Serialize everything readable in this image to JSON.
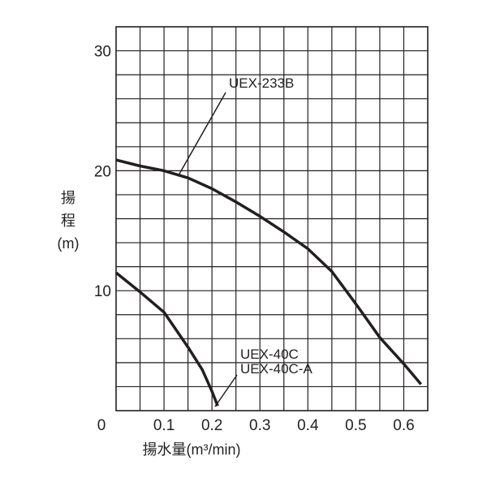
{
  "chart_data": {
    "type": "line",
    "xlabel": "揚水量(m³/min)",
    "ylabel": [
      "揚",
      "程",
      "(m)"
    ],
    "xlim": [
      0,
      0.65
    ],
    "ylim": [
      0,
      32
    ],
    "xticks": [
      0,
      0.1,
      0.2,
      0.3,
      0.4,
      0.5,
      0.6
    ],
    "yticks": [
      10,
      20,
      30
    ],
    "xgrid": [
      0.05,
      0.1,
      0.15,
      0.2,
      0.25,
      0.3,
      0.35,
      0.4,
      0.45,
      0.5,
      0.55,
      0.6
    ],
    "ygrid": [
      2,
      4,
      6,
      8,
      10,
      12,
      14,
      16,
      18,
      20,
      22,
      24,
      26,
      28,
      30
    ],
    "grid": true,
    "series": [
      {
        "name": [
          "UEX-233B"
        ],
        "color": "#231f20",
        "x": [
          0,
          0.05,
          0.1,
          0.15,
          0.2,
          0.25,
          0.3,
          0.35,
          0.4,
          0.45,
          0.5,
          0.55,
          0.6,
          0.636
        ],
        "values": [
          20.9,
          20.4,
          20.0,
          19.4,
          18.5,
          17.4,
          16.2,
          14.9,
          13.5,
          11.6,
          8.9,
          6.1,
          3.9,
          2.2
        ]
      },
      {
        "name": [
          "UEX-40C",
          "UEX-40C-A"
        ],
        "color": "#231f20",
        "x": [
          0,
          0.05,
          0.1,
          0.15,
          0.18,
          0.2,
          0.212
        ],
        "values": [
          11.5,
          9.9,
          8.2,
          5.3,
          3.4,
          1.6,
          0.4
        ]
      }
    ]
  }
}
